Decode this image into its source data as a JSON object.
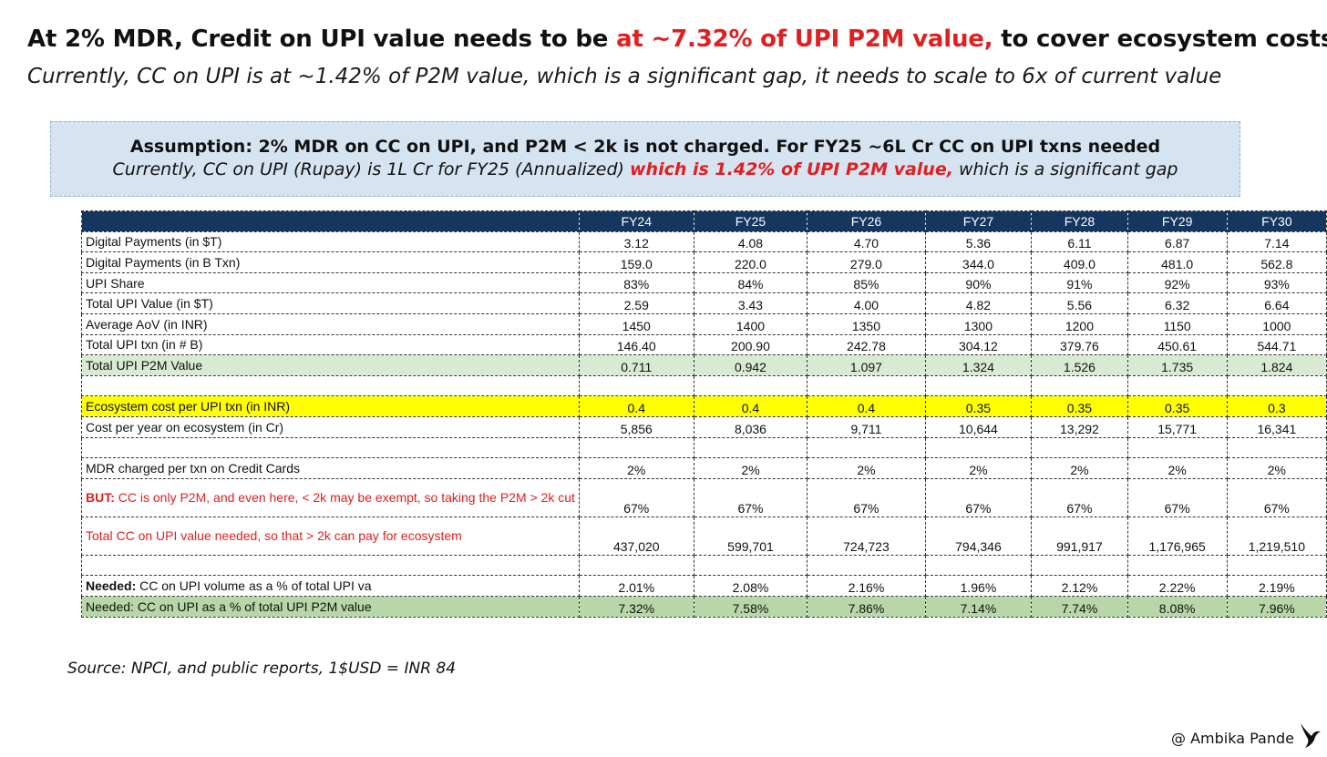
{
  "title": {
    "pre": "At 2% MDR, Credit on UPI value needs to be ",
    "highlight": "at ~7.32% of UPI P2M value,",
    "post": " to cover ecosystem costs"
  },
  "subtitle": "Currently, CC on UPI is at ~1.42% of P2M value, which is a significant gap, it needs to scale to 6x of current value",
  "assumption": {
    "line1": "Assumption: 2% MDR on CC on UPI, and P2M < 2k is not charged. For FY25 ~6L Cr CC on UPI txns needed",
    "line2_pre": "Currently, CC on UPI (Rupay) is 1L Cr for FY25 (Annualized) ",
    "line2_highlight": "which is 1.42% of UPI P2M value,",
    "line2_post": " which is a significant gap"
  },
  "table": {
    "headers": [
      "",
      "FY24",
      "FY25",
      "FY26",
      "FY27",
      "FY28",
      "FY29",
      "FY30"
    ],
    "rows": {
      "digital_payments_usd": {
        "label": "Digital Payments (in $T)",
        "values": [
          "3.12",
          "4.08",
          "4.70",
          "5.36",
          "6.11",
          "6.87",
          "7.14"
        ]
      },
      "digital_payments_txn": {
        "label": "Digital Payments (in B Txn)",
        "values": [
          "159.0",
          "220.0",
          "279.0",
          "344.0",
          "409.0",
          "481.0",
          "562.8"
        ]
      },
      "upi_share": {
        "label": "UPI Share",
        "values": [
          "83%",
          "84%",
          "85%",
          "90%",
          "91%",
          "92%",
          "93%"
        ]
      },
      "total_upi_value": {
        "label": "Total UPI Value (in $T)",
        "values": [
          "2.59",
          "3.43",
          "4.00",
          "4.82",
          "5.56",
          "6.32",
          "6.64"
        ]
      },
      "average_aov": {
        "label": "Average AoV (in INR)",
        "values": [
          "1450",
          "1400",
          "1350",
          "1300",
          "1200",
          "1150",
          "1000"
        ]
      },
      "total_upi_txn": {
        "label": "Total UPI txn (in # B)",
        "values": [
          "146.40",
          "200.90",
          "242.78",
          "304.12",
          "379.76",
          "450.61",
          "544.71"
        ]
      },
      "total_upi_p2m": {
        "label": "Total UPI P2M Value",
        "values": [
          "0.711",
          "0.942",
          "1.097",
          "1.324",
          "1.526",
          "1.735",
          "1.824"
        ]
      },
      "ecosystem_cost": {
        "label": "Ecosystem cost per UPI txn (in INR)",
        "values": [
          "0.4",
          "0.4",
          "0.4",
          "0.35",
          "0.35",
          "0.35",
          "0.3"
        ]
      },
      "cost_per_year": {
        "label": "Cost per year on ecosystem (in Cr)",
        "values": [
          "5,856",
          "8,036",
          "9,711",
          "10,644",
          "13,292",
          "15,771",
          "16,341"
        ]
      },
      "mdr_charged": {
        "label": "MDR charged per txn on Credit Cards",
        "values": [
          "2%",
          "2%",
          "2%",
          "2%",
          "2%",
          "2%",
          "2%"
        ]
      },
      "but_cc": {
        "label_bold": "BUT:",
        "label": " CC is only P2M, and even here, < 2k may be exempt, so taking the P2M > 2k cut",
        "values": [
          "67%",
          "67%",
          "67%",
          "67%",
          "67%",
          "67%",
          "67%"
        ]
      },
      "total_cc_needed": {
        "label": "Total CC on UPI value needed, so that > 2k can pay for ecosystem",
        "values": [
          "437,020",
          "599,701",
          "724,723",
          "794,346",
          "991,917",
          "1,176,965",
          "1,219,510"
        ]
      },
      "needed_volume": {
        "label_bold": "Needed:",
        "label": " CC on UPI volume as a % of total UPI va",
        "values": [
          "2.01%",
          "2.08%",
          "2.16%",
          "1.96%",
          "2.12%",
          "2.22%",
          "2.19%"
        ]
      },
      "needed_p2m": {
        "label": "Needed: CC on UPI as a % of total UPI P2M value",
        "values": [
          "7.32%",
          "7.58%",
          "7.86%",
          "7.14%",
          "7.74%",
          "8.08%",
          "7.96%"
        ]
      }
    }
  },
  "source": "Source: NPCI, and public reports, 1$USD = INR 84",
  "credit": "@ Ambika Pande",
  "logo_icon": "bird-silhouette-icon"
}
